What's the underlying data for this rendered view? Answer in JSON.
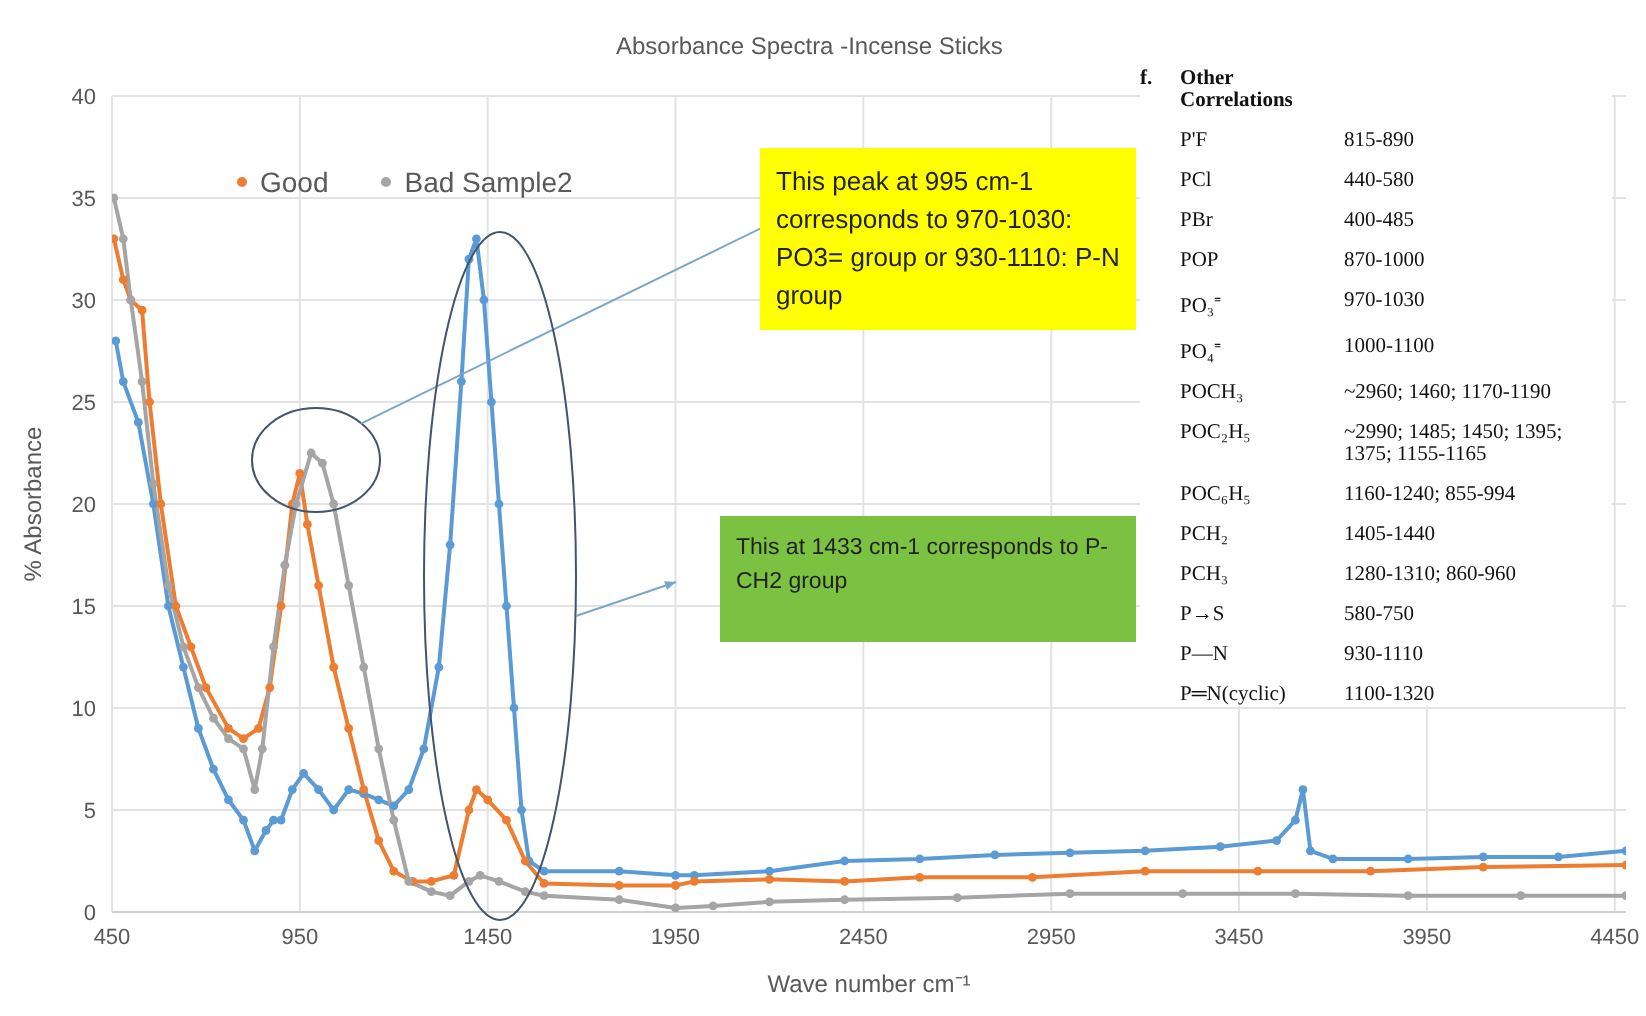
{
  "chart_data": {
    "type": "line",
    "title": "Absorbance Spectra -Incense Sticks",
    "xlabel": "Wave number  cm⁻¹",
    "ylabel": "% Absorbance",
    "xlim": [
      450,
      4480
    ],
    "xticks": [
      450,
      950,
      1450,
      1950,
      2450,
      2950,
      3450,
      3950,
      4450
    ],
    "ylim": [
      0,
      40
    ],
    "yticks": [
      0,
      5,
      10,
      15,
      20,
      25,
      30,
      35,
      40
    ],
    "grid": true,
    "legend": "top",
    "marker": "circle",
    "series": [
      {
        "color": "#5b9bd5",
        "x": [
          460,
          480,
          520,
          560,
          600,
          640,
          680,
          720,
          760,
          800,
          830,
          860,
          880,
          900,
          930,
          960,
          1000,
          1040,
          1080,
          1120,
          1160,
          1200,
          1240,
          1280,
          1320,
          1350,
          1380,
          1400,
          1420,
          1440,
          1460,
          1480,
          1500,
          1520,
          1540,
          1560,
          1600,
          1800,
          1950,
          2000,
          2200,
          2400,
          2600,
          2800,
          3000,
          3200,
          3400,
          3550,
          3600,
          3620,
          3640,
          3700,
          3900,
          4100,
          4300,
          4480
        ],
        "values": [
          28,
          26,
          24,
          20,
          15,
          12,
          9,
          7,
          5.5,
          4.5,
          3,
          4,
          4.5,
          4.5,
          6,
          6.8,
          6,
          5,
          6,
          5.8,
          5.5,
          5.2,
          6,
          8,
          12,
          18,
          26,
          32,
          33,
          30,
          25,
          20,
          15,
          10,
          5,
          2.5,
          2,
          2,
          1.8,
          1.8,
          2,
          2.5,
          2.6,
          2.8,
          2.9,
          3,
          3.2,
          3.5,
          4.5,
          6,
          3,
          2.6,
          2.6,
          2.7,
          2.7,
          3
        ]
      },
      {
        "name": "Good",
        "color": "#ed7d31",
        "x": [
          455,
          480,
          500,
          530,
          550,
          580,
          620,
          660,
          700,
          760,
          800,
          840,
          870,
          900,
          930,
          950,
          970,
          1000,
          1040,
          1080,
          1120,
          1160,
          1200,
          1250,
          1300,
          1360,
          1400,
          1420,
          1450,
          1500,
          1550,
          1600,
          1800,
          1950,
          2000,
          2200,
          2400,
          2600,
          2900,
          3200,
          3500,
          3800,
          4100,
          4480
        ],
        "values": [
          33,
          31,
          30,
          29.5,
          25,
          20,
          15,
          13,
          11,
          9,
          8.5,
          9,
          11,
          15,
          20,
          21.5,
          19,
          16,
          12,
          9,
          6,
          3.5,
          2,
          1.5,
          1.5,
          1.8,
          5,
          6,
          5.5,
          4.5,
          2.5,
          1.4,
          1.3,
          1.3,
          1.5,
          1.6,
          1.5,
          1.7,
          1.7,
          2,
          2,
          2,
          2.2,
          2.3
        ]
      },
      {
        "name": "Bad Sample2",
        "color": "#a5a5a5",
        "x": [
          455,
          480,
          500,
          530,
          560,
          600,
          640,
          680,
          720,
          760,
          800,
          830,
          850,
          880,
          910,
          940,
          980,
          1010,
          1040,
          1080,
          1120,
          1160,
          1200,
          1240,
          1300,
          1350,
          1400,
          1430,
          1480,
          1550,
          1600,
          1800,
          1950,
          2050,
          2200,
          2400,
          2700,
          3000,
          3300,
          3600,
          3900,
          4200,
          4480
        ],
        "values": [
          35,
          33,
          30,
          26,
          21,
          16,
          13,
          11,
          9.5,
          8.5,
          8,
          6,
          8,
          13,
          17,
          20,
          22.5,
          22,
          20,
          16,
          12,
          8,
          4.5,
          1.5,
          1,
          0.8,
          1.5,
          1.8,
          1.5,
          1,
          0.8,
          0.6,
          0.2,
          0.3,
          0.5,
          0.6,
          0.7,
          0.9,
          0.9,
          0.9,
          0.8,
          0.8,
          0.8
        ]
      }
    ],
    "annotations": [
      "This peak at 995 cm-1 corresponds to 970-1030: PO3= group or 930-1110: P-N group",
      "This at 1433 cm-1 corresponds to P-CH2 group",
      "f.",
      "Other Correlations",
      "P'F",
      "815-890",
      "PCl",
      "440-580",
      "PBr",
      "400-485",
      "POP",
      "870-1000",
      "PO₃⁼",
      "970-1030",
      "PO₄⁼",
      "1000-1100",
      "POCH₃",
      "~2960; 1460; 1170-1190",
      "POC₂H₅",
      "~2990; 1485; 1450; 1395; 1375; 1155-1165",
      "POC₆H₅",
      "1160-1240; 855-994",
      "PCH₂",
      "1405-1440",
      "PCH₃",
      "1280-1310; 860-960",
      "P→S",
      "580-750",
      "P—N",
      "930-1110",
      "P═N(cyclic)",
      "1100-1320"
    ]
  }
}
